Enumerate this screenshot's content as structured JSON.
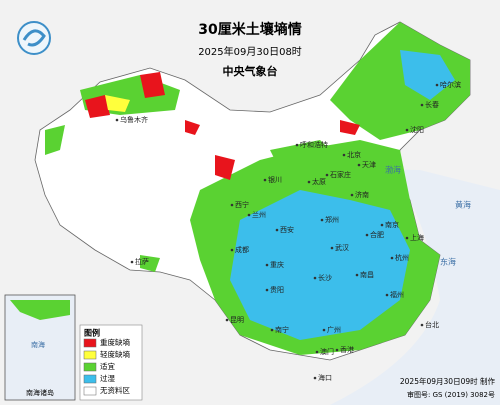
{
  "header": {
    "title": "30厘米土壤墒情",
    "subtitle": "2025年09月30日08时",
    "agency": "中央气象台"
  },
  "legend": {
    "title": "图例",
    "items": [
      {
        "label": "重度缺墒",
        "color": "#e8141c"
      },
      {
        "label": "轻度缺墒",
        "color": "#ffff3c"
      },
      {
        "label": "适宜",
        "color": "#5ad232"
      },
      {
        "label": "过湿",
        "color": "#3cbeeb"
      },
      {
        "label": "无资料区",
        "color": "#ffffff"
      }
    ]
  },
  "inset": {
    "label": "南海诸岛",
    "sea": "南海"
  },
  "footer": {
    "made": "2025年09月30日09时 制作",
    "approval": "审图号: GS (2019) 3082号"
  },
  "seas": [
    "黄海",
    "东海",
    "渤海"
  ],
  "cities": [
    "乌鲁木齐",
    "拉萨",
    "西宁",
    "兰州",
    "银川",
    "呼和浩特",
    "北京",
    "天津",
    "石家庄",
    "太原",
    "济南",
    "郑州",
    "西安",
    "成都",
    "重庆",
    "武汉",
    "合肥",
    "南京",
    "上海",
    "杭州",
    "长沙",
    "南昌",
    "福州",
    "台北",
    "贵阳",
    "昆明",
    "南宁",
    "广州",
    "香港",
    "澳门",
    "海口",
    "沈阳",
    "长春",
    "哈尔滨"
  ]
}
